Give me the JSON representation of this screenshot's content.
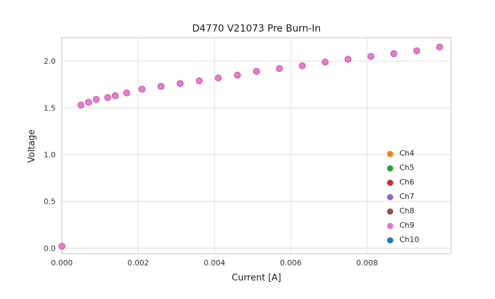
{
  "chart_data": {
    "type": "scatter",
    "title": "D4770 V21073 Pre Burn-In",
    "xlabel": "Current [A]",
    "ylabel": "Voltage",
    "xlim": [
      0,
      0.0102
    ],
    "ylim": [
      -0.06,
      2.25
    ],
    "xticks": [
      0.0,
      0.002,
      0.004,
      0.006,
      0.008
    ],
    "xtick_labels": [
      "0.000",
      "0.002",
      "0.004",
      "0.006",
      "0.008"
    ],
    "yticks": [
      0.0,
      0.5,
      1.0,
      1.5,
      2.0
    ],
    "ytick_labels": [
      "0.0",
      "0.5",
      "1.0",
      "1.5",
      "2.0"
    ],
    "grid": true,
    "grid_color": "#dddddd",
    "spine_color": "#cccccc",
    "legend_position": "lower right",
    "marker": {
      "fill": "#e87bce",
      "edge": "#c9519f",
      "radius": 4.5
    },
    "x": [
      0.0,
      0.0005,
      0.0007,
      0.0009,
      0.0012,
      0.0014,
      0.0017,
      0.0021,
      0.0026,
      0.0031,
      0.0036,
      0.0041,
      0.0046,
      0.0051,
      0.0057,
      0.0063,
      0.0069,
      0.0075,
      0.0081,
      0.0087,
      0.0093,
      0.0099
    ],
    "y": [
      0.02,
      1.53,
      1.56,
      1.59,
      1.61,
      1.63,
      1.66,
      1.7,
      1.73,
      1.76,
      1.79,
      1.82,
      1.85,
      1.89,
      1.92,
      1.95,
      1.99,
      2.02,
      2.05,
      2.08,
      2.11,
      2.15
    ],
    "series": [
      {
        "name": "Ch4",
        "color": "#ff7f0e"
      },
      {
        "name": "Ch5",
        "color": "#2ca02c"
      },
      {
        "name": "Ch6",
        "color": "#d62728"
      },
      {
        "name": "Ch7",
        "color": "#9467bd"
      },
      {
        "name": "Ch8",
        "color": "#8c564b"
      },
      {
        "name": "Ch9",
        "color": "#e377c2"
      },
      {
        "name": "Ch10",
        "color": "#1f77b4"
      }
    ]
  }
}
